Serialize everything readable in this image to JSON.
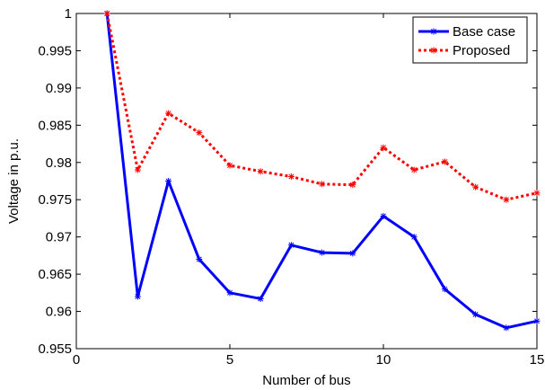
{
  "chart_data": {
    "type": "line",
    "xlabel": "Number of bus",
    "ylabel": "Voltage in p.u.",
    "xlim": [
      0,
      15
    ],
    "ylim": [
      0.955,
      1.0
    ],
    "xticks": [
      0,
      5,
      10,
      15
    ],
    "yticks": [
      0.955,
      0.96,
      0.965,
      0.97,
      0.975,
      0.98,
      0.985,
      0.99,
      0.995,
      1
    ],
    "ytick_labels": [
      "0.955",
      "0.96",
      "0.965",
      "0.97",
      "0.975",
      "0.98",
      "0.985",
      "0.99",
      "0.995",
      "1"
    ],
    "grid": false,
    "legend_position": "top-right",
    "x": [
      1,
      2,
      3,
      4,
      5,
      6,
      7,
      8,
      9,
      10,
      11,
      12,
      13,
      14,
      15
    ],
    "series": [
      {
        "name": "Base case",
        "color": "#0000ff",
        "style": "solid",
        "marker": "asterisk",
        "values": [
          1.0,
          0.962,
          0.9775,
          0.967,
          0.9625,
          0.9617,
          0.9689,
          0.9679,
          0.9678,
          0.9728,
          0.97,
          0.963,
          0.9596,
          0.9578,
          0.9587
        ]
      },
      {
        "name": "Proposed",
        "color": "#ff0000",
        "style": "dotted",
        "marker": "asterisk",
        "values": [
          1.0,
          0.979,
          0.9866,
          0.984,
          0.9796,
          0.9788,
          0.9781,
          0.9771,
          0.977,
          0.982,
          0.979,
          0.9801,
          0.9767,
          0.975,
          0.9759
        ]
      }
    ]
  }
}
